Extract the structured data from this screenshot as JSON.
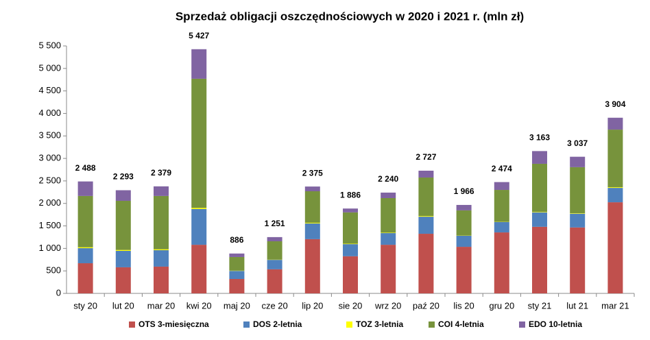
{
  "chart_data": {
    "type": "stacked_bar",
    "title": "Sprzedaż obligacji oszczędnościowych w 2020 i 2021 r. (mln zł)",
    "categories": [
      "sty 20",
      "lut 20",
      "mar 20",
      "kwi 20",
      "maj 20",
      "cze 20",
      "lip 20",
      "sie 20",
      "wrz 20",
      "paź 20",
      "lis 20",
      "gru 20",
      "sty 21",
      "lut 21",
      "mar 21"
    ],
    "series": [
      {
        "name": "OTS 3-miesięczna",
        "color": "#c0504d",
        "values": [
          670,
          580,
          595,
          1080,
          320,
          535,
          1205,
          825,
          1080,
          1325,
          1035,
          1355,
          1480,
          1465,
          2025
        ]
      },
      {
        "name": "DOS 2-letnia",
        "color": "#4f81bd",
        "values": [
          335,
          365,
          365,
          795,
          180,
          210,
          350,
          270,
          260,
          380,
          245,
          230,
          320,
          305,
          320
        ]
      },
      {
        "name": "TOZ 3-letnia",
        "color": "#ffff00",
        "values": [
          20,
          20,
          20,
          25,
          5,
          5,
          15,
          10,
          10,
          15,
          5,
          5,
          10,
          10,
          15
        ]
      },
      {
        "name": "COI 4-letnia",
        "color": "#77933c",
        "values": [
          1140,
          1092,
          1185,
          2870,
          303,
          408,
          700,
          695,
          768,
          855,
          560,
          710,
          1070,
          1025,
          1280
        ]
      },
      {
        "name": "EDO 10-letnia",
        "color": "#8064a2",
        "values": [
          323,
          236,
          214,
          657,
          78,
          93,
          105,
          86,
          122,
          152,
          121,
          174,
          283,
          232,
          264
        ]
      }
    ],
    "totals": [
      2488,
      2293,
      2379,
      5427,
      886,
      1251,
      2375,
      1886,
      2240,
      2727,
      1966,
      2474,
      3163,
      3037,
      3904
    ],
    "total_labels": [
      "2 488",
      "2 293",
      "2 379",
      "5 427",
      "886",
      "1 251",
      "2 375",
      "1 886",
      "2 240",
      "2 727",
      "1 966",
      "2 474",
      "3 163",
      "3 037",
      "3 904"
    ],
    "ylim": [
      0,
      5500
    ],
    "yticks": [
      0,
      500,
      {
        "value": 1000,
        "label": "1 000"
      },
      {
        "value": 1500,
        "label": "1 500"
      },
      {
        "value": 2000,
        "label": "2 000"
      },
      {
        "value": 2500,
        "label": "2 500"
      },
      {
        "value": 3000,
        "label": "3 000"
      },
      {
        "value": 3500,
        "label": "3 500"
      },
      {
        "value": 4000,
        "label": "4 000"
      },
      {
        "value": 4500,
        "label": "4 500"
      },
      {
        "value": 5000,
        "label": "5 000"
      },
      {
        "value": 5500,
        "label": "5 500"
      }
    ],
    "legend": "bottom"
  }
}
